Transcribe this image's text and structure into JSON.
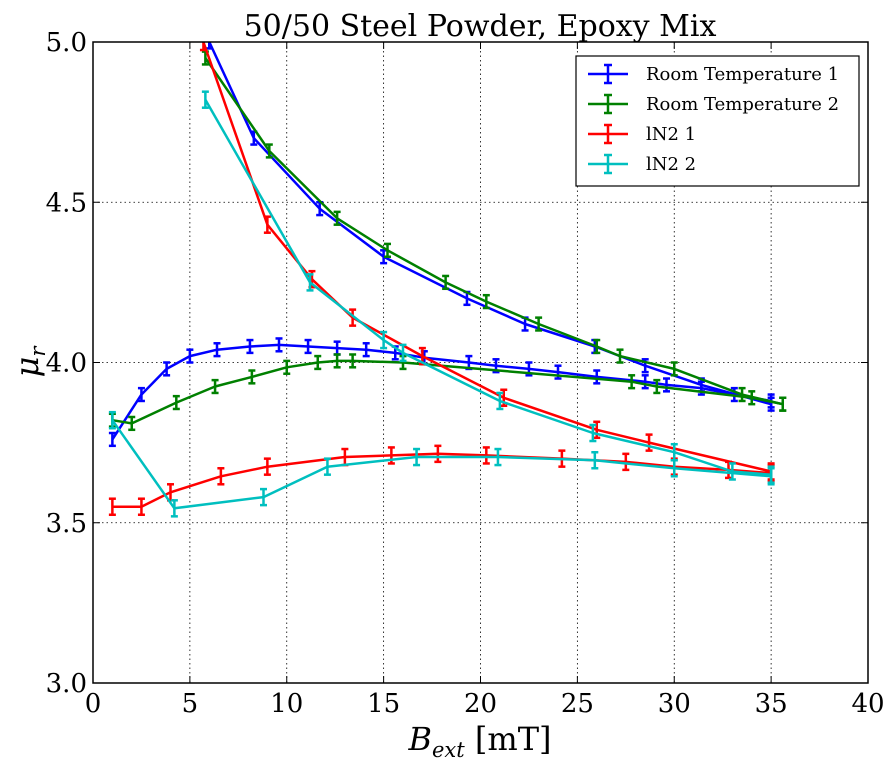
{
  "chart_data": {
    "type": "line",
    "title": "50/50 Steel Powder, Epoxy Mix",
    "xlabel": "B",
    "xlabel_sub": "ext",
    "xlabel_unit": " [mT]",
    "ylabel": "μ",
    "ylabel_sub": "r",
    "xlim": [
      0,
      40
    ],
    "ylim": [
      3.0,
      5.0
    ],
    "xticks": [
      0,
      5,
      10,
      15,
      20,
      25,
      30,
      35,
      40
    ],
    "yticks": [
      3.0,
      3.5,
      4.0,
      4.5,
      5.0
    ],
    "xtick_labels": [
      "0",
      "5",
      "10",
      "15",
      "20",
      "25",
      "30",
      "35",
      "40"
    ],
    "ytick_labels": [
      "3.0",
      "3.5",
      "4.0",
      "4.5",
      "5.0"
    ],
    "grid": true,
    "legend_position": "top-right",
    "series": [
      {
        "name": "Room Temperature 1",
        "color": "#0000ff",
        "yerr": 0.02,
        "branches": [
          {
            "x": [
              1.0,
              2.5,
              3.8,
              5.0,
              6.4,
              8.1,
              9.6,
              11.1,
              12.6,
              14.1,
              15.6,
              17.1,
              19.4,
              20.8,
              22.5,
              24.0,
              26.0,
              28.5,
              29.6,
              31.4,
              33.1,
              35.0
            ],
            "y": [
              3.76,
              3.9,
              3.98,
              4.02,
              4.04,
              4.05,
              4.055,
              4.05,
              4.045,
              4.04,
              4.03,
              4.015,
              4.0,
              3.99,
              3.98,
              3.97,
              3.955,
              3.94,
              3.93,
              3.92,
              3.9,
              3.88
            ]
          },
          {
            "x": [
              6.0,
              8.3,
              11.7,
              15.0,
              19.3,
              22.3,
              25.9,
              28.5,
              31.4,
              35.0
            ],
            "y": [
              5.0,
              4.7,
              4.48,
              4.33,
              4.2,
              4.12,
              4.05,
              3.99,
              3.93,
              3.87
            ]
          }
        ]
      },
      {
        "name": "Room Temperature 2",
        "color": "#008000",
        "yerr": 0.02,
        "branches": [
          {
            "x": [
              1.0,
              2.0,
              4.3,
              6.3,
              8.2,
              10.0,
              11.6,
              12.6,
              13.4,
              16.0,
              27.8,
              29.1,
              34.0,
              35.6
            ],
            "y": [
              3.82,
              3.81,
              3.875,
              3.925,
              3.955,
              3.985,
              4.0,
              4.005,
              4.005,
              4.0,
              3.94,
              3.925,
              3.89,
              3.87
            ]
          },
          {
            "x": [
              5.8,
              9.1,
              12.6,
              15.2,
              18.2,
              20.3,
              23.0,
              26.0,
              27.2,
              30.0,
              33.5,
              35.6
            ],
            "y": [
              4.95,
              4.66,
              4.45,
              4.35,
              4.25,
              4.19,
              4.12,
              4.05,
              4.02,
              3.98,
              3.9,
              3.87
            ]
          }
        ]
      },
      {
        "name": "lN2 1",
        "color": "#ff0000",
        "yerr": 0.025,
        "branches": [
          {
            "x": [
              1.0,
              2.5,
              4.0,
              6.6,
              9.0,
              13.0,
              15.4,
              17.8,
              20.3,
              24.2,
              27.5,
              30.0,
              32.8,
              35.0
            ],
            "y": [
              3.55,
              3.55,
              3.595,
              3.645,
              3.675,
              3.705,
              3.71,
              3.715,
              3.71,
              3.7,
              3.69,
              3.675,
              3.665,
              3.655
            ]
          },
          {
            "x": [
              5.7,
              9.0,
              11.3,
              13.4,
              17.0,
              21.2,
              26.0,
              28.7,
              35.0
            ],
            "y": [
              5.0,
              4.43,
              4.26,
              4.14,
              4.02,
              3.89,
              3.79,
              3.75,
              3.66
            ]
          }
        ]
      },
      {
        "name": "lN2 2",
        "color": "#00bfbf",
        "yerr": 0.025,
        "branches": [
          {
            "x": [
              1.0,
              4.2,
              8.8,
              12.1,
              16.7,
              20.9,
              25.9,
              30.0,
              35.0
            ],
            "y": [
              3.82,
              3.545,
              3.58,
              3.675,
              3.705,
              3.705,
              3.695,
              3.67,
              3.645
            ]
          },
          {
            "x": [
              5.8,
              11.2,
              15.0,
              16.0,
              21.0,
              25.8,
              30.0,
              33.0,
              35.0
            ],
            "y": [
              4.82,
              4.25,
              4.07,
              4.03,
              3.88,
              3.78,
              3.72,
              3.66,
              3.65
            ]
          }
        ]
      }
    ]
  }
}
